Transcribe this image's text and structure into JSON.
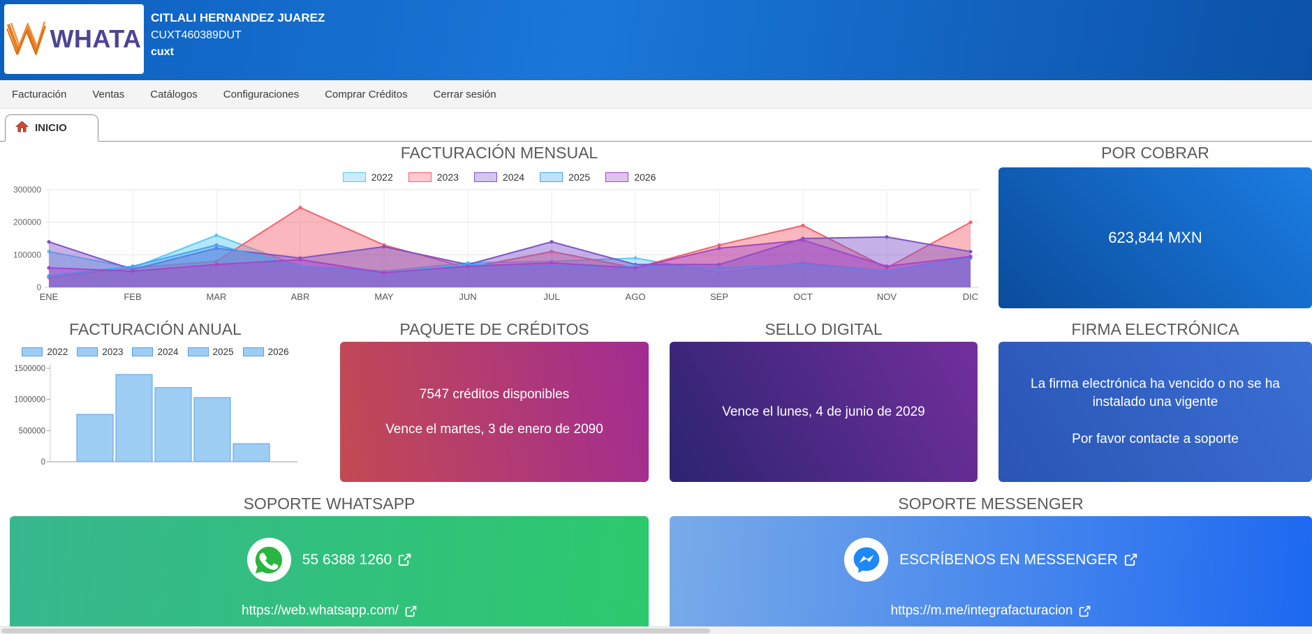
{
  "header": {
    "logo_text": "WHATA",
    "client_name": "CITLALI HERNANDEZ JUAREZ",
    "client_rfc": "CUXT460389DUT",
    "client_user": "cuxt"
  },
  "nav": {
    "items": [
      {
        "key": "facturacion",
        "label": "Facturación"
      },
      {
        "key": "ventas",
        "label": "Ventas"
      },
      {
        "key": "catalogos",
        "label": "Catálogos"
      },
      {
        "key": "configuraciones",
        "label": "Configuraciones"
      },
      {
        "key": "comprar-creditos",
        "label": "Comprar Créditos"
      },
      {
        "key": "cerrar-sesion",
        "label": "Cerrar sesión"
      }
    ]
  },
  "tab": {
    "label": "INICIO"
  },
  "sections": {
    "monthly": {
      "title": "FACTURACIÓN MENSUAL"
    },
    "por_cobrar": {
      "title": "POR COBRAR",
      "amount": "623,844 MXN"
    },
    "annual": {
      "title": "FACTURACIÓN ANUAL"
    },
    "creditos": {
      "title": "PAQUETE DE CRÉDITOS",
      "line1": "7547 créditos disponibles",
      "line2": "Vence el martes, 3 de enero de 2090"
    },
    "sello": {
      "title": "SELLO DIGITAL",
      "line1": "Vence el lunes, 4 de junio de 2029"
    },
    "firma": {
      "title": "FIRMA ELECTRÓNICA",
      "line1": "La firma electrónica ha vencido o no se ha instalado una vigente",
      "line2": "Por favor contacte a soporte"
    },
    "whatsapp": {
      "title": "SOPORTE WHATSAPP",
      "phone": "55 6388 1260",
      "link": "https://web.whatsapp.com/"
    },
    "messenger": {
      "title": "SOPORTE MESSENGER",
      "cta": "ESCRÍBENOS EN MESSENGER",
      "link": "https://m.me/integrafacturacion"
    }
  },
  "chart_data": [
    {
      "type": "area",
      "title": "FACTURACIÓN MENSUAL",
      "x": [
        "ENE",
        "FEB",
        "MAR",
        "ABR",
        "MAY",
        "JUN",
        "JUL",
        "AGO",
        "SEP",
        "OCT",
        "NOV",
        "DIC"
      ],
      "ylim": [
        0,
        300000
      ],
      "yticks": [
        0,
        100000,
        200000,
        300000
      ],
      "grid": true,
      "legend_position": "top",
      "series": [
        {
          "name": "2022",
          "color": "#5bc8f5",
          "values": [
            110000,
            60000,
            160000,
            65000,
            50000,
            75000,
            80000,
            90000,
            45000,
            75000,
            50000,
            95000
          ]
        },
        {
          "name": "2023",
          "color": "#f4616e",
          "values": [
            30000,
            60000,
            80000,
            245000,
            130000,
            60000,
            110000,
            60000,
            130000,
            190000,
            60000,
            200000
          ]
        },
        {
          "name": "2024",
          "color": "#7e52c9",
          "values": [
            140000,
            55000,
            120000,
            90000,
            125000,
            70000,
            140000,
            70000,
            70000,
            150000,
            155000,
            110000
          ]
        },
        {
          "name": "2025",
          "color": "#41a8f5",
          "values": [
            35000,
            65000,
            130000,
            65000,
            45000,
            70000,
            65000,
            65000,
            60000,
            70000,
            50000,
            90000
          ]
        },
        {
          "name": "2026",
          "color": "#a445c8",
          "values": [
            60000,
            50000,
            70000,
            85000,
            45000,
            65000,
            75000,
            60000,
            120000,
            145000,
            65000,
            95000
          ]
        }
      ]
    },
    {
      "type": "bar",
      "title": "FACTURACIÓN ANUAL",
      "categories": [
        "2022",
        "2023",
        "2024",
        "2025",
        "2026"
      ],
      "values": [
        760000,
        1400000,
        1190000,
        1030000,
        290000
      ],
      "ylim": [
        0,
        1500000
      ],
      "yticks": [
        0,
        500000,
        1000000,
        1500000
      ],
      "legend_position": "top",
      "bar_color": "#9ecdf4",
      "bar_border": "#55a0e6"
    }
  ]
}
